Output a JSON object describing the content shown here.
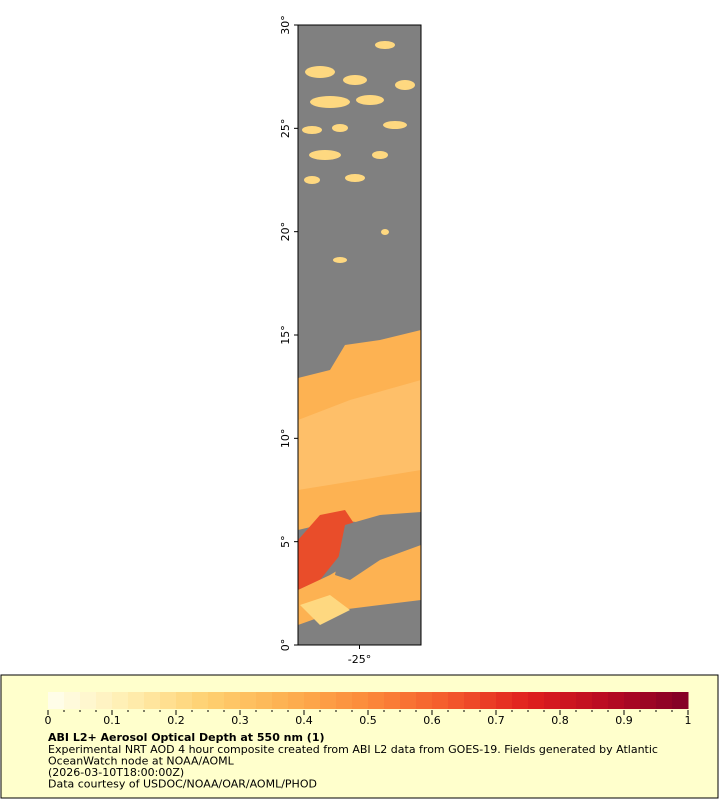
{
  "map": {
    "ylim": [
      0,
      30
    ],
    "yticks": [
      {
        "value": 0,
        "label": "0°"
      },
      {
        "value": 5,
        "label": "5°"
      },
      {
        "value": 10,
        "label": "10°"
      },
      {
        "value": 15,
        "label": "15°"
      },
      {
        "value": 20,
        "label": "20°"
      },
      {
        "value": 25,
        "label": "25°"
      },
      {
        "value": 30,
        "label": "30°"
      }
    ],
    "xlim": [
      -28,
      -22
    ],
    "xticks": [
      {
        "value": -25,
        "label": "-25°"
      }
    ]
  },
  "colorbar": {
    "title": "ABI L2+ Aerosol Optical Depth at 550 nm (1)",
    "lim": [
      0,
      1
    ],
    "ticks": [
      0,
      0.1,
      0.2,
      0.3,
      0.4,
      0.5,
      0.6,
      0.7,
      0.8,
      0.9,
      1
    ],
    "colors": [
      "#ffffee",
      "#ffeeb0",
      "#fed070",
      "#fdb050",
      "#fc8a3a",
      "#f45a2c",
      "#e0201e",
      "#b80a22",
      "#800026"
    ]
  },
  "notes": [
    "Experimental NRT AOD 4 hour composite created from ABI L2 data from GOES-19. Fields generated by Atlantic",
    "OceanWatch node at NOAA/AOML",
    "(2026-03-10T18:00:00Z)",
    "Data courtesy of USDOC/NOAA/OAR/AOML/PHOD"
  ]
}
